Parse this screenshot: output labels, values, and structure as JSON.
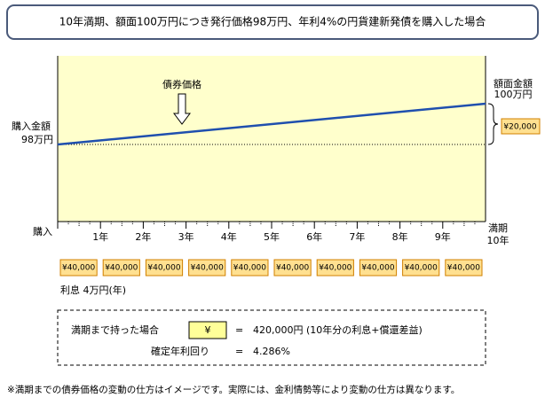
{
  "header": {
    "title": "10年満期、額面100万円につき発行価格98万円、年利4%の円貨建新発債を購入した場合"
  },
  "plot": {
    "price_label": "債券価格",
    "purchase_label": "購入金額",
    "purchase_amount": "98万円",
    "face_label": "額面金額",
    "face_amount": "100万円",
    "gain": "¥20,000",
    "start_label": "購入",
    "maturity_label": "満期",
    "maturity_year": "10年",
    "years": [
      "1年",
      "2年",
      "3年",
      "4年",
      "5年",
      "6年",
      "7年",
      "8年",
      "9年"
    ]
  },
  "interest": {
    "boxes": [
      "¥40,000",
      "¥40,000",
      "¥40,000",
      "¥40,000",
      "¥40,000",
      "¥40,000",
      "¥40,000",
      "¥40,000",
      "¥40,000",
      "¥40,000"
    ],
    "caption": "利息 4万円(年)"
  },
  "summary": {
    "hold_label": "満期まで持った場合",
    "yen": "¥",
    "equals_1": "=",
    "total": "420,000円",
    "note": "(10年分の利息+償還差益)",
    "yield_label": "確定年利回り",
    "equals_2": "=",
    "yield": "4.286%"
  },
  "footnote": "※満期までの債券価格の変動の仕方はイメージです。実際には、金利情勢等により変動の仕方は異なります。"
}
